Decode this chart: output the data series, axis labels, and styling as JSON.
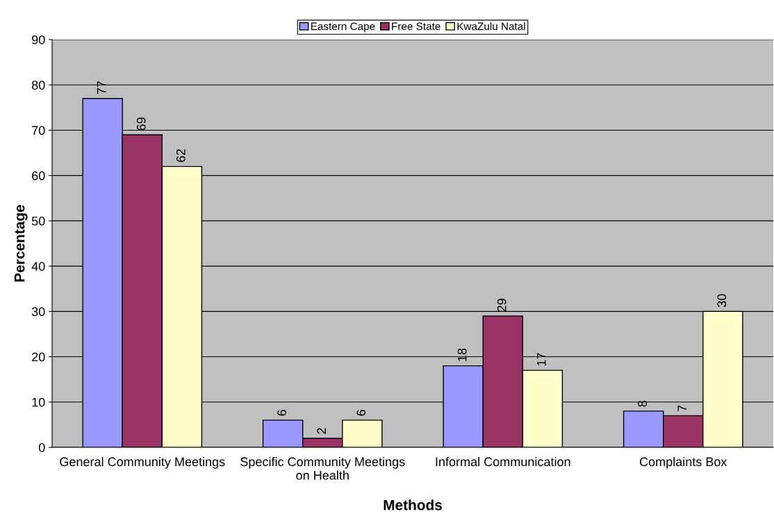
{
  "chart_data": {
    "type": "bar",
    "xlabel": "Methods",
    "ylabel": "Percentage",
    "categories": [
      "General Community Meetings",
      "Specific Community Meetings\non Health",
      "Informal Communication",
      "Complaints Box"
    ],
    "series": [
      {
        "name": "Eastern Cape",
        "color": "#9999ff",
        "values": [
          77,
          6,
          18,
          8
        ]
      },
      {
        "name": "Free State",
        "color": "#993366",
        "values": [
          69,
          2,
          29,
          7
        ]
      },
      {
        "name": "KwaZulu Natal",
        "color": "#ffffcc",
        "values": [
          62,
          6,
          17,
          30
        ]
      }
    ],
    "ylim": [
      0,
      90
    ],
    "yticks": [
      0,
      10,
      20,
      30,
      40,
      50,
      60,
      70,
      80,
      90
    ],
    "grid": "y",
    "legend": "top",
    "data_labels": true
  }
}
